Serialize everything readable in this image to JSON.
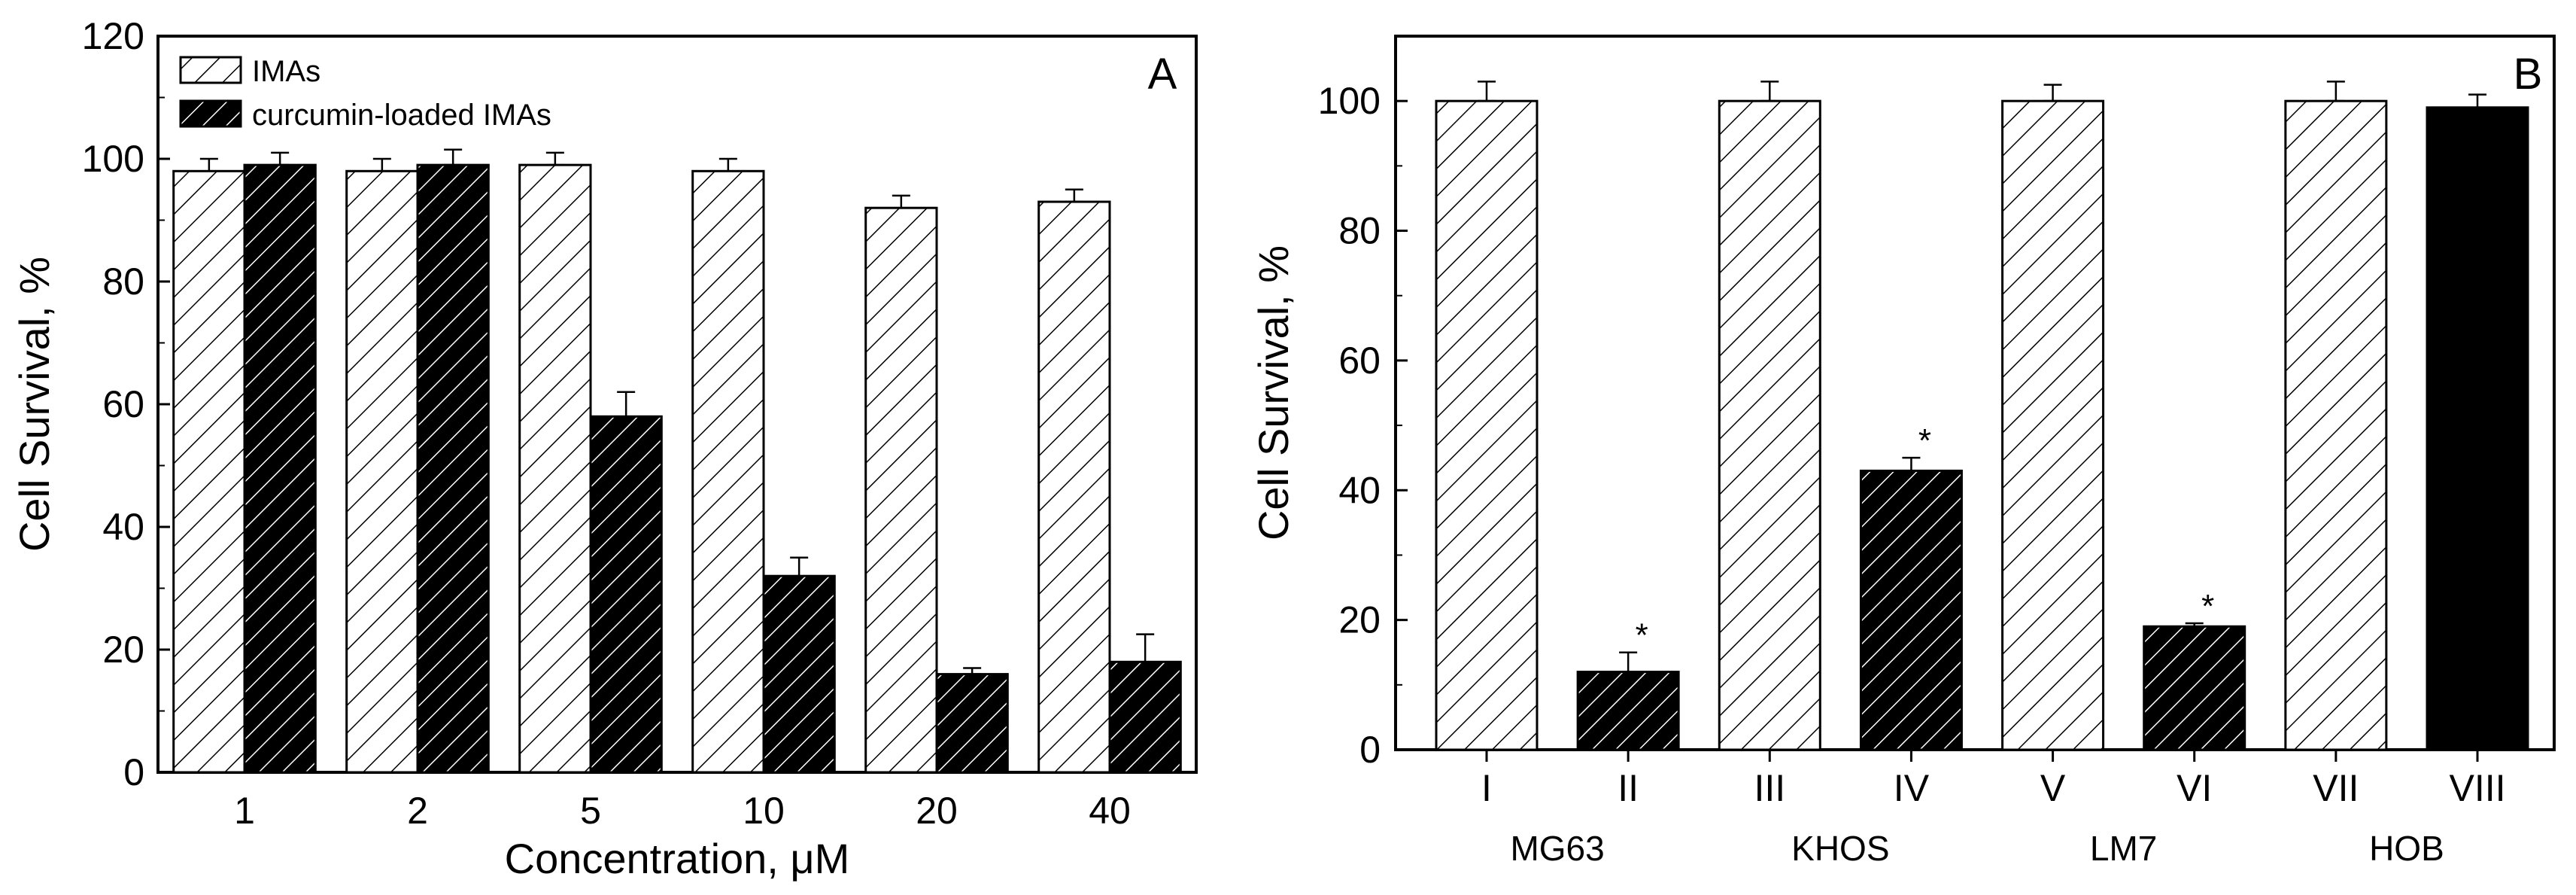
{
  "colors": {
    "axis": "#000000",
    "bar_outline": "#000000",
    "hatch_light_bg": "#ffffff",
    "hatch_dark_bg": "#000000",
    "hatch_light_line": "#000000",
    "hatch_dark_line": "#ffffff"
  },
  "chart_data": [
    {
      "panel": "A",
      "type": "bar",
      "title": "",
      "xlabel": "Concentration, μM",
      "ylabel": "Cell Survival, %",
      "ylim": [
        0,
        120
      ],
      "yticks": [
        "0",
        "20",
        "40",
        "60",
        "80",
        "100",
        "120"
      ],
      "categories": [
        "1",
        "2",
        "5",
        "10",
        "20",
        "40"
      ],
      "legend_position": "top-left",
      "grid": false,
      "series": [
        {
          "name": "IMAs",
          "fill": "light-hatch",
          "values": [
            98,
            98,
            99,
            98,
            92,
            93
          ],
          "errors": [
            2,
            2,
            2,
            2,
            2,
            2
          ]
        },
        {
          "name": "curcumin-loaded IMAs",
          "fill": "dark-hatch",
          "values": [
            99,
            99,
            58,
            32,
            16,
            18
          ],
          "errors": [
            2,
            2.5,
            4,
            3,
            1,
            4.5
          ]
        }
      ]
    },
    {
      "panel": "B",
      "type": "bar",
      "title": "",
      "xlabel": "",
      "ylabel": "Cell Survival, %",
      "ylim": [
        0,
        110
      ],
      "yticks": [
        "0",
        "20",
        "40",
        "60",
        "80",
        "100"
      ],
      "categories": [
        "I",
        "II",
        "III",
        "IV",
        "V",
        "VI",
        "VII",
        "VIII"
      ],
      "groups": [
        "MG63",
        "KHOS",
        "LM7",
        "HOB"
      ],
      "grid": false,
      "bars": [
        {
          "label": "I",
          "value": 100,
          "error": 3,
          "fill": "light-hatch",
          "star": ""
        },
        {
          "label": "II",
          "value": 12,
          "error": 3,
          "fill": "dark-hatch",
          "star": "*"
        },
        {
          "label": "III",
          "value": 100,
          "error": 3,
          "fill": "light-hatch",
          "star": ""
        },
        {
          "label": "IV",
          "value": 43,
          "error": 2,
          "fill": "dark-hatch",
          "star": "*"
        },
        {
          "label": "V",
          "value": 100,
          "error": 2.5,
          "fill": "light-hatch",
          "star": ""
        },
        {
          "label": "VI",
          "value": 19,
          "error": 0.5,
          "fill": "dark-hatch",
          "star": "*"
        },
        {
          "label": "VII",
          "value": 100,
          "error": 3,
          "fill": "light-hatch",
          "star": ""
        },
        {
          "label": "VIII",
          "value": 99,
          "error": 2,
          "fill": "black",
          "star": ""
        }
      ]
    }
  ]
}
